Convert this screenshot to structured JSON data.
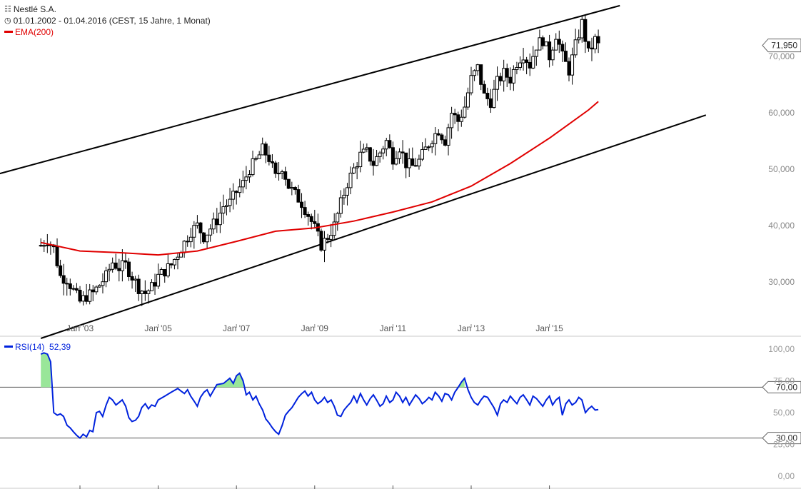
{
  "header": {
    "title": "Nestlé S.A.",
    "title_icon": "candlestick-icon",
    "range": "01.01.2002 - 01.04.2016 (CEST, 15 Jahre, 1 Monat)",
    "range_icon": "clock-icon",
    "ema_label": "EMA(200)"
  },
  "rsi_legend": {
    "label": "RSI(14)",
    "value": "52,39"
  },
  "colors": {
    "ema": "#e00000",
    "rsi": "#0022dd",
    "rsi_fill": "#99e699",
    "channel": "#000000",
    "candle": "#000000"
  },
  "chart_data": [
    {
      "type": "candlestick",
      "name": "Nestlé S.A.",
      "x_tick_labels": [
        "Jan '03",
        "Jan '05",
        "Jan '07",
        "Jan '09",
        "Jan '11",
        "Jan '13",
        "Jan '15"
      ],
      "x_range": [
        "2002-01",
        "2016-04"
      ],
      "y_tick_labels": [
        "30,000",
        "40,000",
        "50,000",
        "60,000",
        "70,000"
      ],
      "ylim": [
        21,
        79
      ],
      "last_price_label": "71,950",
      "grid": false,
      "close_series": [
        [
          2002.0,
          36.5
        ],
        [
          2002.17,
          37.5
        ],
        [
          2002.33,
          36.0
        ],
        [
          2002.5,
          31.0
        ],
        [
          2002.67,
          30.5
        ],
        [
          2002.83,
          28.5
        ],
        [
          2003.0,
          26.5
        ],
        [
          2003.17,
          27.5
        ],
        [
          2003.33,
          28.0
        ],
        [
          2003.5,
          29.5
        ],
        [
          2003.67,
          31.0
        ],
        [
          2003.83,
          33.5
        ],
        [
          2004.0,
          32.5
        ],
        [
          2004.17,
          33.0
        ],
        [
          2004.33,
          31.0
        ],
        [
          2004.5,
          29.0
        ],
        [
          2004.67,
          28.0
        ],
        [
          2004.83,
          29.0
        ],
        [
          2005.0,
          31.0
        ],
        [
          2005.17,
          32.0
        ],
        [
          2005.33,
          33.0
        ],
        [
          2005.5,
          35.0
        ],
        [
          2005.67,
          37.0
        ],
        [
          2005.83,
          39.0
        ],
        [
          2006.0,
          40.0
        ],
        [
          2006.17,
          38.0
        ],
        [
          2006.33,
          39.5
        ],
        [
          2006.5,
          41.0
        ],
        [
          2006.67,
          43.5
        ],
        [
          2006.83,
          44.0
        ],
        [
          2007.0,
          46.0
        ],
        [
          2007.17,
          47.5
        ],
        [
          2007.33,
          50.0
        ],
        [
          2007.5,
          51.5
        ],
        [
          2007.67,
          53.5
        ],
        [
          2007.83,
          52.0
        ],
        [
          2008.0,
          48.5
        ],
        [
          2008.17,
          50.5
        ],
        [
          2008.33,
          47.0
        ],
        [
          2008.5,
          45.5
        ],
        [
          2008.67,
          44.0
        ],
        [
          2008.83,
          42.0
        ],
        [
          2009.0,
          39.5
        ],
        [
          2009.17,
          36.5
        ],
        [
          2009.33,
          38.0
        ],
        [
          2009.5,
          40.0
        ],
        [
          2009.67,
          44.0
        ],
        [
          2009.83,
          47.5
        ],
        [
          2010.0,
          50.0
        ],
        [
          2010.17,
          52.5
        ],
        [
          2010.33,
          53.0
        ],
        [
          2010.5,
          51.0
        ],
        [
          2010.67,
          53.0
        ],
        [
          2010.83,
          55.0
        ],
        [
          2011.0,
          52.0
        ],
        [
          2011.17,
          54.0
        ],
        [
          2011.33,
          51.0
        ],
        [
          2011.5,
          50.5
        ],
        [
          2011.67,
          51.5
        ],
        [
          2011.83,
          53.5
        ],
        [
          2012.0,
          55.5
        ],
        [
          2012.17,
          57.0
        ],
        [
          2012.33,
          55.0
        ],
        [
          2012.5,
          60.0
        ],
        [
          2012.67,
          58.5
        ],
        [
          2012.83,
          61.0
        ],
        [
          2013.0,
          66.0
        ],
        [
          2013.17,
          68.0
        ],
        [
          2013.33,
          63.0
        ],
        [
          2013.5,
          62.0
        ],
        [
          2013.67,
          65.5
        ],
        [
          2013.83,
          67.0
        ],
        [
          2014.0,
          66.0
        ],
        [
          2014.17,
          69.0
        ],
        [
          2014.33,
          70.5
        ],
        [
          2014.5,
          68.5
        ],
        [
          2014.67,
          72.0
        ],
        [
          2014.83,
          73.0
        ],
        [
          2015.0,
          70.0
        ],
        [
          2015.17,
          74.0
        ],
        [
          2015.33,
          70.0
        ],
        [
          2015.5,
          67.5
        ],
        [
          2015.67,
          72.0
        ],
        [
          2015.83,
          76.0
        ],
        [
          2016.0,
          70.5
        ],
        [
          2016.17,
          73.0
        ],
        [
          2016.25,
          71.95
        ]
      ],
      "ema_series": [
        [
          2002.0,
          37.0
        ],
        [
          2003.0,
          35.5
        ],
        [
          2004.0,
          35.2
        ],
        [
          2005.0,
          34.8
        ],
        [
          2006.0,
          35.5
        ],
        [
          2007.0,
          37.2
        ],
        [
          2008.0,
          39.0
        ],
        [
          2009.0,
          39.6
        ],
        [
          2010.0,
          40.8
        ],
        [
          2011.0,
          42.4
        ],
        [
          2012.0,
          44.2
        ],
        [
          2013.0,
          47.0
        ],
        [
          2014.0,
          51.0
        ],
        [
          2015.0,
          55.5
        ],
        [
          2015.5,
          58.0
        ],
        [
          2016.0,
          60.5
        ],
        [
          2016.25,
          62.0
        ]
      ],
      "channel_lines": [
        {
          "name": "upper",
          "points": [
            [
              2000.3,
              48.0
            ],
            [
              2016.8,
              79.0
            ]
          ]
        },
        {
          "name": "lower",
          "points": [
            [
              2002.0,
              20.0
            ],
            [
              2019.0,
              59.6
            ]
          ]
        }
      ]
    },
    {
      "type": "line",
      "name": "RSI(14)",
      "ylim": [
        0,
        100
      ],
      "y_tick_labels": [
        "0,00",
        "25,00",
        "50,00",
        "75,00",
        "100,00"
      ],
      "thresholds": [
        70,
        30
      ],
      "threshold_labels": [
        "70,00",
        "30,00"
      ],
      "last_value": 52.39,
      "series": [
        [
          2002.0,
          96
        ],
        [
          2002.08,
          97
        ],
        [
          2002.17,
          96
        ],
        [
          2002.25,
          90
        ],
        [
          2002.33,
          50
        ],
        [
          2002.42,
          48
        ],
        [
          2002.5,
          49
        ],
        [
          2002.58,
          47
        ],
        [
          2002.67,
          40
        ],
        [
          2002.75,
          38
        ],
        [
          2002.83,
          35
        ],
        [
          2002.92,
          32
        ],
        [
          2003.0,
          30
        ],
        [
          2003.08,
          33
        ],
        [
          2003.17,
          31
        ],
        [
          2003.25,
          36
        ],
        [
          2003.33,
          35
        ],
        [
          2003.42,
          50
        ],
        [
          2003.5,
          51
        ],
        [
          2003.58,
          47
        ],
        [
          2003.67,
          56
        ],
        [
          2003.75,
          62
        ],
        [
          2003.83,
          60
        ],
        [
          2003.92,
          56
        ],
        [
          2004.0,
          58
        ],
        [
          2004.08,
          60
        ],
        [
          2004.17,
          55
        ],
        [
          2004.25,
          46
        ],
        [
          2004.33,
          43
        ],
        [
          2004.42,
          44
        ],
        [
          2004.5,
          47
        ],
        [
          2004.58,
          54
        ],
        [
          2004.67,
          57
        ],
        [
          2004.75,
          53
        ],
        [
          2004.83,
          56
        ],
        [
          2004.92,
          55
        ],
        [
          2005.0,
          60
        ],
        [
          2005.17,
          63
        ],
        [
          2005.33,
          66
        ],
        [
          2005.5,
          69
        ],
        [
          2005.58,
          67
        ],
        [
          2005.67,
          65
        ],
        [
          2005.75,
          68
        ],
        [
          2005.83,
          63
        ],
        [
          2005.92,
          59
        ],
        [
          2006.0,
          55
        ],
        [
          2006.08,
          62
        ],
        [
          2006.17,
          66
        ],
        [
          2006.25,
          68
        ],
        [
          2006.33,
          63
        ],
        [
          2006.5,
          72
        ],
        [
          2006.67,
          73
        ],
        [
          2006.83,
          77
        ],
        [
          2006.92,
          73
        ],
        [
          2007.0,
          79
        ],
        [
          2007.08,
          81
        ],
        [
          2007.17,
          75
        ],
        [
          2007.25,
          64
        ],
        [
          2007.33,
          66
        ],
        [
          2007.42,
          60
        ],
        [
          2007.5,
          63
        ],
        [
          2007.58,
          57
        ],
        [
          2007.67,
          52
        ],
        [
          2007.75,
          45
        ],
        [
          2007.83,
          42
        ],
        [
          2007.92,
          38
        ],
        [
          2008.0,
          35
        ],
        [
          2008.08,
          33
        ],
        [
          2008.17,
          40
        ],
        [
          2008.25,
          48
        ],
        [
          2008.33,
          51
        ],
        [
          2008.42,
          54
        ],
        [
          2008.5,
          58
        ],
        [
          2008.58,
          62
        ],
        [
          2008.67,
          65
        ],
        [
          2008.75,
          67
        ],
        [
          2008.83,
          63
        ],
        [
          2008.92,
          66
        ],
        [
          2009.0,
          60
        ],
        [
          2009.08,
          57
        ],
        [
          2009.17,
          59
        ],
        [
          2009.25,
          62
        ],
        [
          2009.33,
          58
        ],
        [
          2009.42,
          60
        ],
        [
          2009.5,
          55
        ],
        [
          2009.58,
          48
        ],
        [
          2009.67,
          47
        ],
        [
          2009.75,
          52
        ],
        [
          2009.83,
          55
        ],
        [
          2009.92,
          58
        ],
        [
          2010.0,
          63
        ],
        [
          2010.08,
          58
        ],
        [
          2010.17,
          65
        ],
        [
          2010.25,
          60
        ],
        [
          2010.33,
          56
        ],
        [
          2010.42,
          61
        ],
        [
          2010.5,
          64
        ],
        [
          2010.58,
          60
        ],
        [
          2010.67,
          55
        ],
        [
          2010.75,
          57
        ],
        [
          2010.83,
          63
        ],
        [
          2010.92,
          58
        ],
        [
          2011.0,
          60
        ],
        [
          2011.08,
          66
        ],
        [
          2011.17,
          63
        ],
        [
          2011.25,
          58
        ],
        [
          2011.33,
          62
        ],
        [
          2011.42,
          56
        ],
        [
          2011.5,
          60
        ],
        [
          2011.58,
          64
        ],
        [
          2011.67,
          61
        ],
        [
          2011.75,
          57
        ],
        [
          2011.83,
          59
        ],
        [
          2011.92,
          62
        ],
        [
          2012.0,
          60
        ],
        [
          2012.08,
          66
        ],
        [
          2012.17,
          63
        ],
        [
          2012.25,
          59
        ],
        [
          2012.33,
          65
        ],
        [
          2012.42,
          64
        ],
        [
          2012.5,
          60
        ],
        [
          2012.58,
          66
        ],
        [
          2012.67,
          70
        ],
        [
          2012.75,
          74
        ],
        [
          2012.83,
          77
        ],
        [
          2012.92,
          68
        ],
        [
          2013.0,
          62
        ],
        [
          2013.08,
          58
        ],
        [
          2013.17,
          56
        ],
        [
          2013.25,
          60
        ],
        [
          2013.33,
          63
        ],
        [
          2013.42,
          62
        ],
        [
          2013.5,
          58
        ],
        [
          2013.58,
          54
        ],
        [
          2013.67,
          48
        ],
        [
          2013.75,
          57
        ],
        [
          2013.83,
          60
        ],
        [
          2013.92,
          58
        ],
        [
          2014.0,
          63
        ],
        [
          2014.08,
          60
        ],
        [
          2014.17,
          57
        ],
        [
          2014.25,
          62
        ],
        [
          2014.33,
          64
        ],
        [
          2014.42,
          60
        ],
        [
          2014.5,
          56
        ],
        [
          2014.58,
          63
        ],
        [
          2014.67,
          61
        ],
        [
          2014.75,
          58
        ],
        [
          2014.83,
          55
        ],
        [
          2014.92,
          60
        ],
        [
          2015.0,
          63
        ],
        [
          2015.08,
          56
        ],
        [
          2015.17,
          60
        ],
        [
          2015.25,
          62
        ],
        [
          2015.33,
          48
        ],
        [
          2015.42,
          57
        ],
        [
          2015.5,
          60
        ],
        [
          2015.58,
          56
        ],
        [
          2015.67,
          58
        ],
        [
          2015.75,
          62
        ],
        [
          2015.83,
          60
        ],
        [
          2015.92,
          50
        ],
        [
          2016.0,
          53
        ],
        [
          2016.08,
          55
        ],
        [
          2016.17,
          52
        ],
        [
          2016.25,
          52.39
        ]
      ]
    }
  ]
}
